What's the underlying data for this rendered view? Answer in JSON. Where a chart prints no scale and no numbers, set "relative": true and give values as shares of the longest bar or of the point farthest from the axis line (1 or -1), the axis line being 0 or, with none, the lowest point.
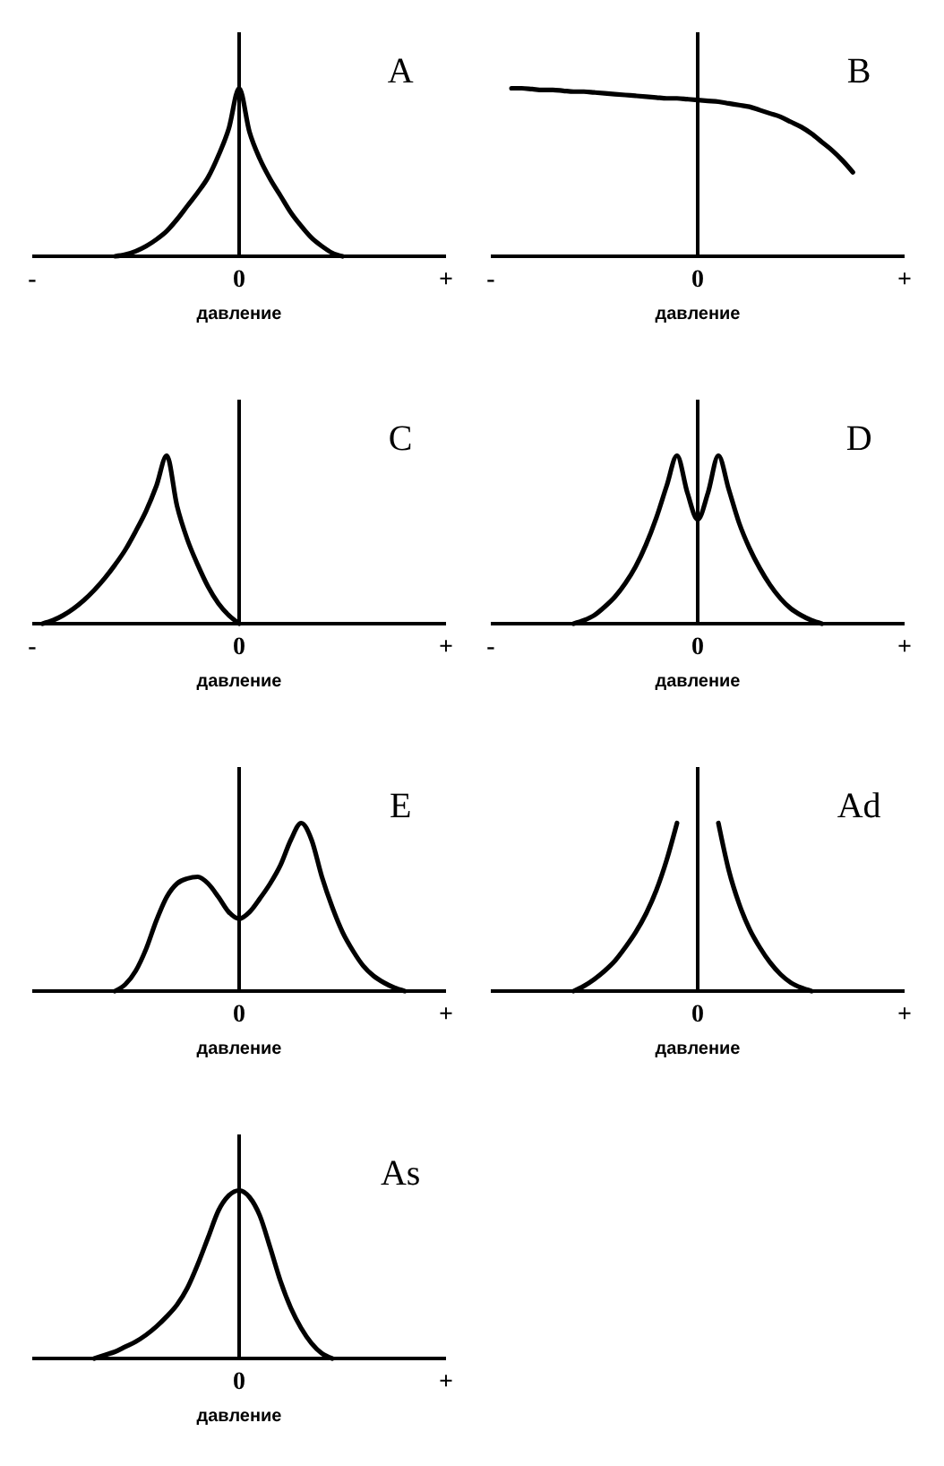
{
  "chart_data": [
    {
      "type": "line",
      "title": "A",
      "xlabel": "давление",
      "relative": true,
      "categories": [
        "-",
        null,
        null,
        null,
        null,
        null,
        null,
        null,
        null,
        null,
        null,
        null,
        null,
        null,
        null,
        null,
        null,
        null,
        null,
        null,
        "0",
        null,
        null,
        null,
        null,
        null,
        null,
        null,
        null,
        null,
        null,
        null,
        null,
        null,
        null,
        null,
        null,
        null,
        null,
        null,
        "+"
      ],
      "series": [
        {
          "color": "#000000",
          "values": [
            null,
            null,
            null,
            null,
            null,
            null,
            null,
            null,
            0,
            0.01,
            0.03,
            0.06,
            0.1,
            0.15,
            0.22,
            0.3,
            0.38,
            0.47,
            0.6,
            0.76,
            1,
            0.74,
            0.58,
            0.46,
            0.36,
            0.26,
            0.18,
            0.11,
            0.06,
            0.02,
            0,
            null,
            null,
            null,
            null,
            null,
            null,
            null,
            null,
            null,
            null
          ]
        }
      ]
    },
    {
      "type": "line",
      "title": "B",
      "xlabel": "давление",
      "relative": true,
      "categories": [
        "-",
        null,
        null,
        null,
        null,
        null,
        null,
        null,
        null,
        null,
        null,
        null,
        null,
        null,
        null,
        null,
        null,
        null,
        null,
        null,
        "0",
        null,
        null,
        null,
        null,
        null,
        null,
        null,
        null,
        null,
        null,
        null,
        null,
        null,
        null,
        null,
        null,
        null,
        null,
        null,
        "+"
      ],
      "series": [
        {
          "color": "#000000",
          "values": [
            null,
            null,
            1,
            1,
            0.995,
            0.99,
            0.99,
            0.985,
            0.98,
            0.98,
            0.975,
            0.97,
            0.965,
            0.96,
            0.955,
            0.95,
            0.945,
            0.94,
            0.94,
            0.935,
            0.93,
            0.925,
            0.92,
            0.91,
            0.9,
            0.89,
            0.87,
            0.85,
            0.83,
            0.8,
            0.77,
            0.73,
            0.68,
            0.63,
            0.57,
            0.5,
            null,
            null,
            null,
            null,
            null
          ]
        }
      ]
    },
    {
      "type": "line",
      "title": "C",
      "xlabel": "давление",
      "relative": true,
      "categories": [
        "-",
        null,
        null,
        null,
        null,
        null,
        null,
        null,
        null,
        null,
        null,
        null,
        null,
        null,
        null,
        null,
        null,
        null,
        null,
        null,
        "0",
        null,
        null,
        null,
        null,
        null,
        null,
        null,
        null,
        null,
        null,
        null,
        null,
        null,
        null,
        null,
        null,
        null,
        null,
        null,
        "+"
      ],
      "series": [
        {
          "color": "#000000",
          "values": [
            null,
            0,
            0.02,
            0.05,
            0.09,
            0.14,
            0.2,
            0.27,
            0.35,
            0.44,
            0.55,
            0.67,
            0.82,
            1,
            0.7,
            0.5,
            0.35,
            0.22,
            0.12,
            0.05,
            0,
            null,
            null,
            null,
            null,
            null,
            null,
            null,
            null,
            null,
            null,
            null,
            null,
            null,
            null,
            null,
            null,
            null,
            null,
            null,
            null
          ]
        }
      ]
    },
    {
      "type": "line",
      "title": "D",
      "xlabel": "давление",
      "relative": true,
      "categories": [
        "-",
        null,
        null,
        null,
        null,
        null,
        null,
        null,
        null,
        null,
        null,
        null,
        null,
        null,
        null,
        null,
        null,
        null,
        null,
        null,
        "0",
        null,
        null,
        null,
        null,
        null,
        null,
        null,
        null,
        null,
        null,
        null,
        null,
        null,
        null,
        null,
        null,
        null,
        null,
        null,
        "+"
      ],
      "series": [
        {
          "color": "#000000",
          "values": [
            null,
            null,
            null,
            null,
            null,
            null,
            null,
            null,
            0,
            0.02,
            0.05,
            0.1,
            0.16,
            0.24,
            0.34,
            0.47,
            0.63,
            0.82,
            1,
            0.78,
            0.62,
            0.78,
            1,
            0.8,
            0.6,
            0.45,
            0.33,
            0.23,
            0.15,
            0.09,
            0.05,
            0.02,
            0,
            null,
            null,
            null,
            null,
            null,
            null,
            null,
            null
          ]
        }
      ]
    },
    {
      "type": "line",
      "title": "E",
      "xlabel": "давление",
      "relative": true,
      "categories": [
        null,
        null,
        null,
        null,
        null,
        null,
        null,
        null,
        null,
        null,
        null,
        null,
        null,
        null,
        null,
        null,
        null,
        null,
        null,
        null,
        "0",
        null,
        null,
        null,
        null,
        null,
        null,
        null,
        null,
        null,
        null,
        null,
        null,
        null,
        null,
        null,
        null,
        null,
        null,
        null,
        "+"
      ],
      "series": [
        {
          "color": "#000000",
          "values": [
            null,
            null,
            null,
            null,
            null,
            null,
            null,
            null,
            0,
            0.04,
            0.12,
            0.25,
            0.42,
            0.56,
            0.64,
            0.67,
            0.68,
            0.64,
            0.56,
            0.47,
            0.43,
            0.47,
            0.55,
            0.64,
            0.75,
            0.9,
            1,
            0.9,
            0.68,
            0.5,
            0.35,
            0.24,
            0.15,
            0.09,
            0.05,
            0.02,
            0,
            null,
            null,
            null,
            null
          ]
        }
      ]
    },
    {
      "type": "line",
      "title": "Ad",
      "xlabel": "давление",
      "relative": true,
      "categories": [
        null,
        null,
        null,
        null,
        null,
        null,
        null,
        null,
        null,
        null,
        null,
        null,
        null,
        null,
        null,
        null,
        null,
        null,
        null,
        null,
        "0",
        null,
        null,
        null,
        null,
        null,
        null,
        null,
        null,
        null,
        null,
        null,
        null,
        null,
        null,
        null,
        null,
        null,
        null,
        null,
        "+"
      ],
      "series": [
        {
          "color": "#000000",
          "values": [
            null,
            null,
            null,
            null,
            null,
            null,
            null,
            null,
            0,
            0.03,
            0.07,
            0.12,
            0.18,
            0.26,
            0.35,
            0.46,
            0.6,
            0.78,
            1,
            null,
            null,
            null,
            1,
            0.72,
            0.52,
            0.37,
            0.26,
            0.17,
            0.1,
            0.05,
            0.02,
            0,
            null,
            null,
            null,
            null,
            null,
            null,
            null,
            null,
            null
          ]
        }
      ]
    },
    {
      "type": "line",
      "title": "As",
      "xlabel": "давление",
      "relative": true,
      "categories": [
        null,
        null,
        null,
        null,
        null,
        null,
        null,
        null,
        null,
        null,
        null,
        null,
        null,
        null,
        null,
        null,
        null,
        null,
        null,
        null,
        "0",
        null,
        null,
        null,
        null,
        null,
        null,
        null,
        null,
        null,
        null,
        null,
        null,
        null,
        null,
        null,
        null,
        null,
        null,
        null,
        "+"
      ],
      "series": [
        {
          "color": "#000000",
          "values": [
            null,
            null,
            null,
            null,
            null,
            null,
            0,
            0.02,
            0.04,
            0.07,
            0.1,
            0.14,
            0.19,
            0.25,
            0.32,
            0.42,
            0.56,
            0.72,
            0.88,
            0.97,
            1,
            0.96,
            0.85,
            0.66,
            0.46,
            0.3,
            0.18,
            0.09,
            0.03,
            0,
            null,
            null,
            null,
            null,
            null,
            null,
            null,
            null,
            null,
            null,
            null
          ]
        }
      ]
    }
  ]
}
